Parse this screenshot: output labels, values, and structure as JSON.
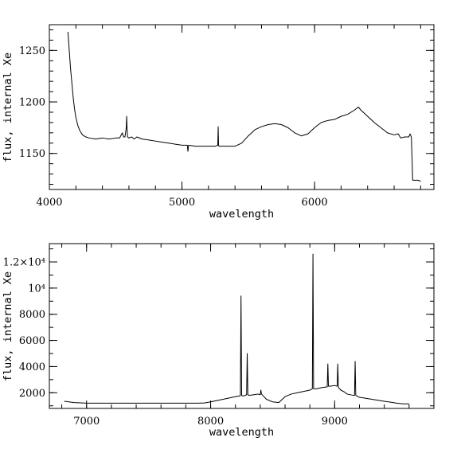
{
  "chart_data": [
    {
      "type": "line",
      "xlabel": "wavelength",
      "ylabel": "flux, internal Xe",
      "xlim": [
        4000,
        6900
      ],
      "ylim": [
        1115,
        1275
      ],
      "xticks": [
        4000,
        5000,
        6000
      ],
      "xtick_labels": [
        "4000",
        "5000",
        "6000"
      ],
      "yticks": [
        1150,
        1200,
        1250
      ],
      "ytick_labels": [
        "1150",
        "1200",
        "1250"
      ],
      "x_minor_step": 200,
      "y_minor_step": 10,
      "grid": false,
      "series": [
        {
          "x": [
            4140,
            4150,
            4160,
            4170,
            4180,
            4190,
            4200,
            4215,
            4230,
            4250,
            4275,
            4300,
            4350,
            4400,
            4450,
            4500,
            4530,
            4550,
            4560,
            4570,
            4580,
            4583,
            4586,
            4590,
            4600,
            4620,
            4640,
            4660,
            4700,
            4750,
            4800,
            4850,
            4900,
            4950,
            5000,
            5040,
            5045,
            5050,
            5100,
            5150,
            5200,
            5250,
            5270,
            5273,
            5276,
            5280,
            5300,
            5350,
            5400,
            5450,
            5500,
            5550,
            5600,
            5650,
            5700,
            5750,
            5800,
            5850,
            5900,
            5950,
            6000,
            6050,
            6100,
            6150,
            6200,
            6250,
            6300,
            6330,
            6350,
            6400,
            6450,
            6500,
            6550,
            6600,
            6630,
            6650,
            6680,
            6700,
            6710,
            6720,
            6730,
            6740,
            6760,
            6780,
            6800
          ],
          "y": [
            1268,
            1250,
            1232,
            1218,
            1204,
            1193,
            1185,
            1177,
            1172,
            1168,
            1166,
            1165,
            1164,
            1165,
            1164,
            1165,
            1165,
            1170,
            1166,
            1166,
            1175,
            1186,
            1174,
            1166,
            1165,
            1166,
            1164,
            1166,
            1164,
            1163,
            1162,
            1161,
            1160,
            1159,
            1158,
            1158,
            1152,
            1158,
            1157,
            1157,
            1157,
            1157,
            1158,
            1176,
            1158,
            1157,
            1157,
            1157,
            1157,
            1160,
            1167,
            1173,
            1176,
            1178,
            1179,
            1178,
            1175,
            1170,
            1167,
            1169,
            1175,
            1180,
            1182,
            1183,
            1186,
            1188,
            1192,
            1195,
            1192,
            1186,
            1180,
            1175,
            1170,
            1168,
            1169,
            1165,
            1166,
            1166,
            1166,
            1169,
            1166,
            1124,
            1124,
            1124,
            1123
          ]
        }
      ]
    },
    {
      "type": "line",
      "xlabel": "wavelength",
      "ylabel": "flux, internal Xe",
      "xlim": [
        6700,
        9800
      ],
      "ylim": [
        800,
        13400
      ],
      "xticks": [
        7000,
        8000,
        9000
      ],
      "xtick_labels": [
        "7000",
        "8000",
        "9000"
      ],
      "yticks": [
        2000,
        4000,
        6000,
        8000,
        10000,
        12000
      ],
      "ytick_labels": [
        "2000",
        "4000",
        "6000",
        "8000",
        "10⁴",
        "1.2×10⁴"
      ],
      "x_minor_step": 200,
      "y_minor_step": 1000,
      "grid": false,
      "series": [
        {
          "x": [
            6820,
            6900,
            7000,
            7200,
            7400,
            7600,
            7800,
            7900,
            7950,
            8000,
            8100,
            8200,
            8230,
            8240,
            8245,
            8250,
            8260,
            8280,
            8290,
            8295,
            8300,
            8310,
            8350,
            8380,
            8400,
            8405,
            8410,
            8430,
            8450,
            8500,
            8550,
            8600,
            8650,
            8700,
            8750,
            8800,
            8810,
            8820,
            8825,
            8830,
            8840,
            8850,
            8900,
            8940,
            8945,
            8950,
            8960,
            9000,
            9020,
            9025,
            9030,
            9050,
            9080,
            9100,
            9150,
            9160,
            9165,
            9170,
            9180,
            9200,
            9300,
            9400,
            9450,
            9500,
            9550,
            9600
          ],
          "y": [
            1350,
            1250,
            1200,
            1200,
            1200,
            1200,
            1200,
            1200,
            1220,
            1300,
            1500,
            1700,
            1750,
            1780,
            9400,
            1800,
            1750,
            1800,
            1850,
            5000,
            1850,
            1800,
            1850,
            1900,
            1850,
            2200,
            1900,
            1700,
            1500,
            1300,
            1250,
            1700,
            1900,
            2000,
            2100,
            2200,
            2250,
            2300,
            12600,
            2300,
            2300,
            2300,
            2400,
            2450,
            4200,
            2500,
            2500,
            2550,
            2500,
            4200,
            2400,
            2200,
            2050,
            1900,
            1800,
            1800,
            4400,
            1800,
            1750,
            1650,
            1500,
            1350,
            1280,
            1200,
            1150,
            1150
          ]
        }
      ]
    }
  ]
}
